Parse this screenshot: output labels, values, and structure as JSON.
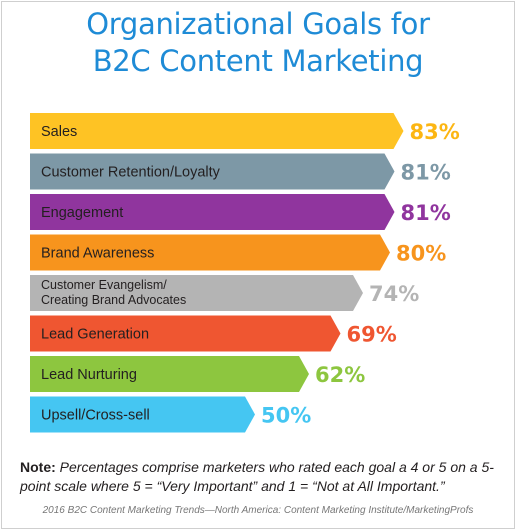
{
  "title_lines": [
    "Organizational Goals for",
    "B2C Content Marketing"
  ],
  "note": {
    "label": "Note:",
    "text": "Percentages comprise marketers who rated each goal a 4 or 5 on a 5-point scale where 5 = “Very Important” and 1 = “Not at All Important.”"
  },
  "source": "2016 B2C Content Marketing Trends—North America: Content Marketing Institute/MarketingProfs",
  "chart_data": {
    "type": "bar",
    "orientation": "horizontal",
    "title": "Organizational Goals for B2C Content Marketing",
    "xlabel": "",
    "ylabel": "",
    "categories": [
      "Sales",
      "Customer Retention/Loyalty",
      "Engagement",
      "Brand Awareness",
      "Customer Evangelism/\nCreating Brand Advocates",
      "Lead Generation",
      "Lead Nurturing",
      "Upsell/Cross-sell"
    ],
    "values": [
      83,
      81,
      81,
      80,
      74,
      69,
      62,
      50
    ],
    "value_labels": [
      "83%",
      "81%",
      "81%",
      "80%",
      "74%",
      "69%",
      "62%",
      "50%"
    ],
    "colors": [
      "#fec324",
      "#7d98a6",
      "#90359e",
      "#f7941d",
      "#b4b4b4",
      "#ef5631",
      "#8dc63f",
      "#45c6f2"
    ],
    "value_colors": [
      "#fcb613",
      "#7d98a6",
      "#90359e",
      "#f7941d",
      "#b4b4b4",
      "#ef5631",
      "#8dc63f",
      "#45c6f2"
    ],
    "xlim": [
      0,
      100
    ],
    "grid": false,
    "legend": "none"
  },
  "colors": {
    "title": "#1e8bd6",
    "text": "#231f20"
  }
}
